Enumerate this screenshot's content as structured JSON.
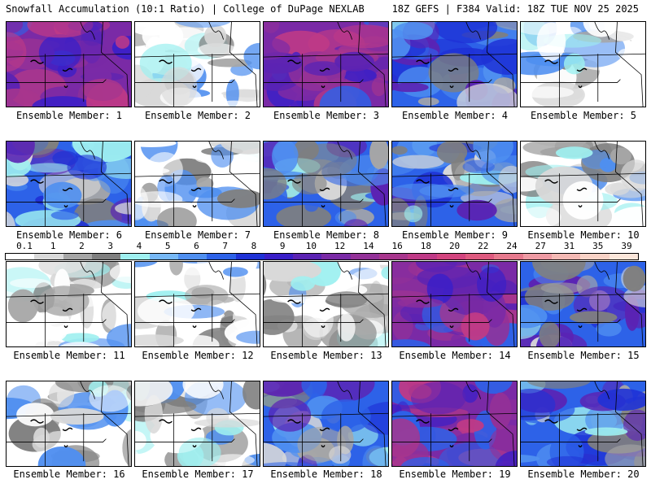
{
  "header": {
    "left": "Snowfall Accumulation (10:1 Ratio) | College of DuPage NEXLAB",
    "right": "18Z GEFS | F384 Valid: 18Z TUE NOV 25 2025"
  },
  "colorbar": {
    "ticks": [
      "0.1",
      "1",
      "2",
      "3",
      "4",
      "5",
      "6",
      "7",
      "8",
      "9",
      "10",
      "12",
      "14",
      "16",
      "18",
      "20",
      "22",
      "24",
      "27",
      "31",
      "35",
      "39"
    ],
    "colors": [
      "#ffffff",
      "#d9d9d9",
      "#a6a6a6",
      "#7f7f7f",
      "#9ff0f0",
      "#77b8f5",
      "#4f8ff0",
      "#2d62e8",
      "#1f32d6",
      "#3a1fc8",
      "#5b23b3",
      "#7a2aa6",
      "#933198",
      "#a8368d",
      "#bf3a86",
      "#d2447e",
      "#de5a7f",
      "#e6798d",
      "#ee9aa3",
      "#f4b9b4",
      "#f8d2c6",
      "#fbe6da"
    ]
  },
  "members": [
    {
      "label": "Ensemble Member: 1",
      "style": "purple"
    },
    {
      "label": "Ensemble Member: 2",
      "style": "light"
    },
    {
      "label": "Ensemble Member: 3",
      "style": "purple"
    },
    {
      "label": "Ensemble Member: 4",
      "style": "mixed"
    },
    {
      "label": "Ensemble Member: 5",
      "style": "light"
    },
    {
      "label": "Ensemble Member: 6",
      "style": "mixed"
    },
    {
      "label": "Ensemble Member: 7",
      "style": "light"
    },
    {
      "label": "Ensemble Member: 8",
      "style": "mixed"
    },
    {
      "label": "Ensemble Member: 9",
      "style": "mixed"
    },
    {
      "label": "Ensemble Member: 10",
      "style": "light"
    },
    {
      "label": "Ensemble Member: 11",
      "style": "light"
    },
    {
      "label": "Ensemble Member: 12",
      "style": "light"
    },
    {
      "label": "Ensemble Member: 13",
      "style": "light"
    },
    {
      "label": "Ensemble Member: 14",
      "style": "purple"
    },
    {
      "label": "Ensemble Member: 15",
      "style": "mixed"
    },
    {
      "label": "Ensemble Member: 16",
      "style": "light"
    },
    {
      "label": "Ensemble Member: 17",
      "style": "light"
    },
    {
      "label": "Ensemble Member: 18",
      "style": "mixed"
    },
    {
      "label": "Ensemble Member: 19",
      "style": "purple"
    },
    {
      "label": "Ensemble Member: 20",
      "style": "mixed"
    }
  ]
}
